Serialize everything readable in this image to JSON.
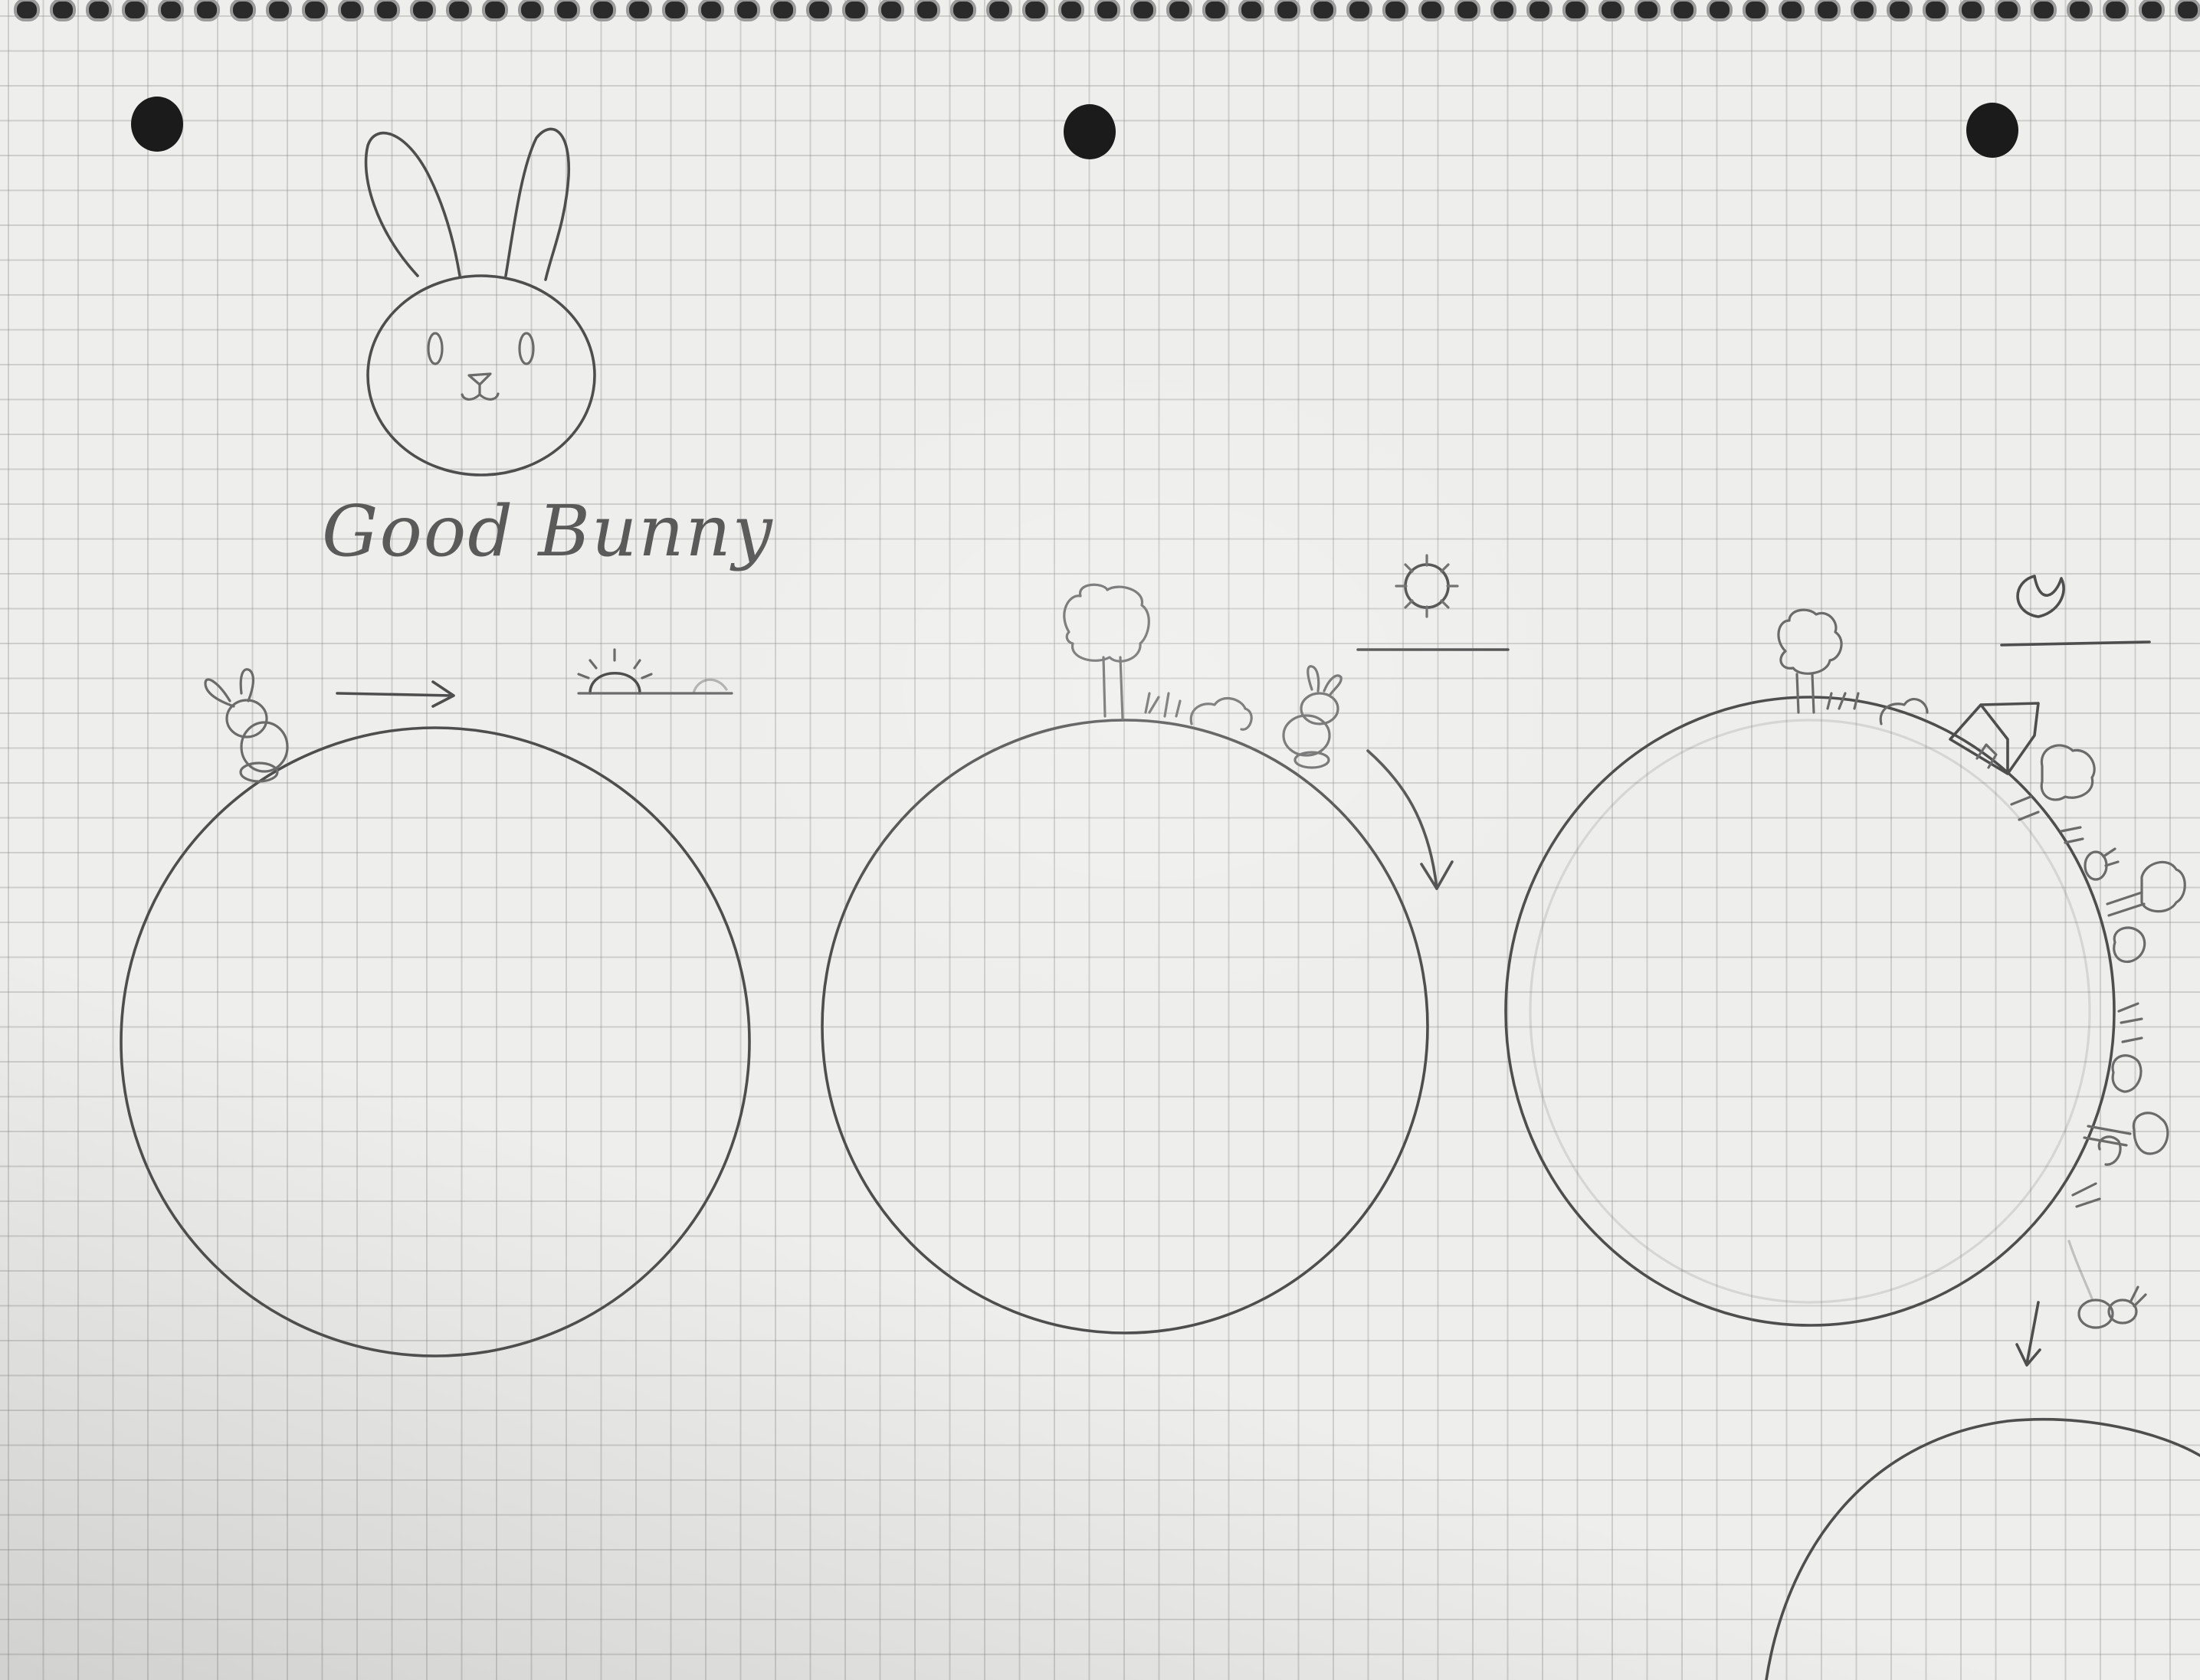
{
  "title": "Good Bunny"
}
